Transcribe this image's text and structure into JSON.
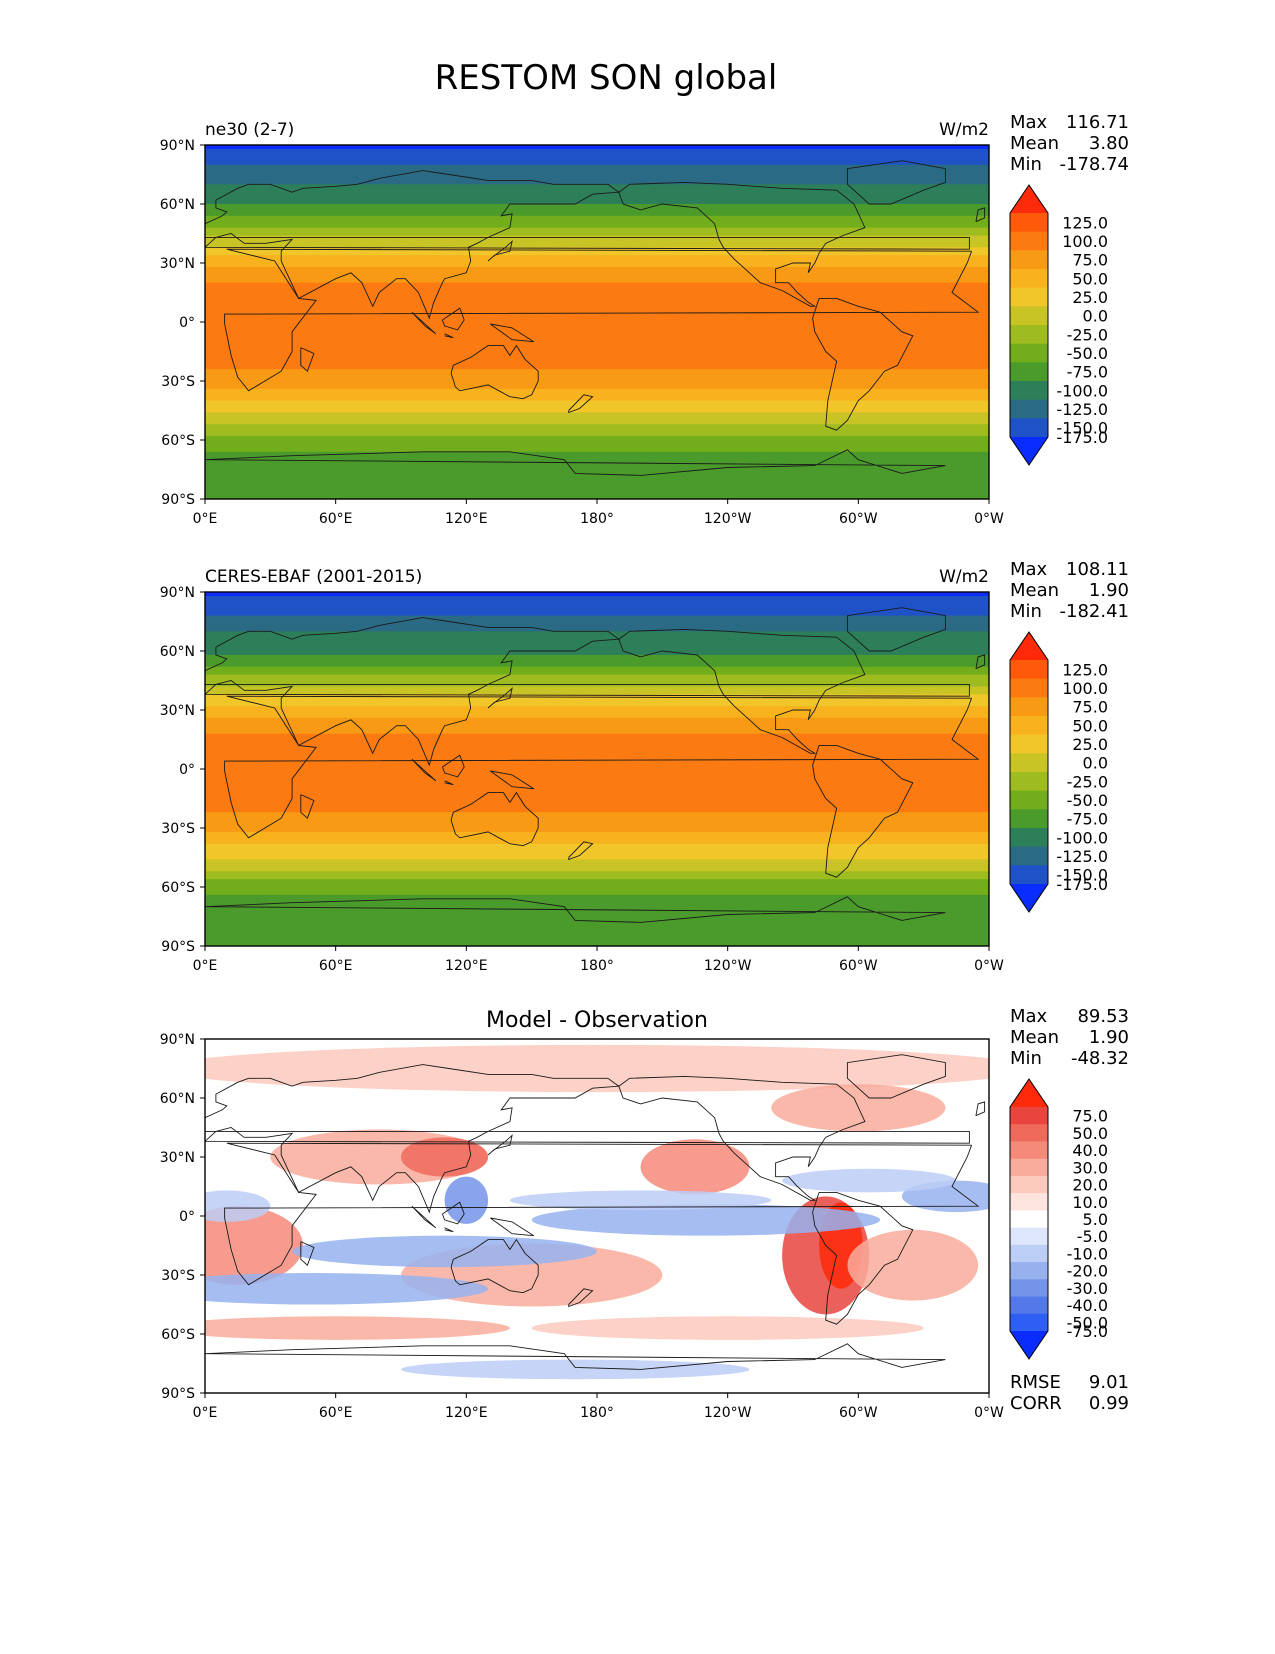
{
  "page_title": "RESTOM SON global",
  "chart_data": [
    {
      "type": "heatmap",
      "left_label": "ne30 (2-7)",
      "units": "W/m2",
      "stats": {
        "Max": "116.71",
        "Mean": "3.80",
        "Min": "-178.74"
      },
      "xticks": [
        "0°E",
        "60°E",
        "120°E",
        "180°",
        "120°W",
        "60°W",
        "0°W"
      ],
      "yticks": [
        "90°N",
        "60°N",
        "30°N",
        "0°",
        "30°S",
        "60°S",
        "90°S"
      ],
      "xlim": [
        0,
        360
      ],
      "ylim": [
        -90,
        90
      ],
      "colorbar": {
        "levels": [
          "125.0",
          "100.0",
          "75.0",
          "50.0",
          "25.0",
          "0.0",
          "-25.0",
          "-50.0",
          "-75.0",
          "-100.0",
          "-125.0",
          "-150.0",
          "-175.0"
        ],
        "colors": [
          "#ff2a0a",
          "#ff5a0a",
          "#fb7a12",
          "#f99a14",
          "#f7b21e",
          "#f0c62a",
          "#c8c426",
          "#9ebc20",
          "#72ae1c",
          "#4a9a2c",
          "#2d7f5a",
          "#2a6a84",
          "#1f52c6",
          "#0b2cff"
        ]
      },
      "zonal_profile": {
        "lat": [
          90,
          80,
          70,
          60,
          50,
          40,
          30,
          20,
          10,
          0,
          -10,
          -20,
          -30,
          -40,
          -50,
          -60,
          -70,
          -80,
          -90
        ],
        "value": [
          -178,
          -150,
          -125,
          -100,
          -60,
          -10,
          40,
          75,
          90,
          85,
          90,
          80,
          65,
          25,
          -15,
          -60,
          -85,
          -80,
          -78
        ]
      }
    },
    {
      "type": "heatmap",
      "left_label": "CERES-EBAF (2001-2015)",
      "units": "W/m2",
      "stats": {
        "Max": "108.11",
        "Mean": "1.90",
        "Min": "-182.41"
      },
      "xticks": [
        "0°E",
        "60°E",
        "120°E",
        "180°",
        "120°W",
        "60°W",
        "0°W"
      ],
      "yticks": [
        "90°N",
        "60°N",
        "30°N",
        "0°",
        "30°S",
        "60°S",
        "90°S"
      ],
      "xlim": [
        0,
        360
      ],
      "ylim": [
        -90,
        90
      ],
      "colorbar": {
        "levels": [
          "125.0",
          "100.0",
          "75.0",
          "50.0",
          "25.0",
          "0.0",
          "-25.0",
          "-50.0",
          "-75.0",
          "-100.0",
          "-125.0",
          "-150.0",
          "-175.0"
        ],
        "colors": [
          "#ff2a0a",
          "#ff5a0a",
          "#fb7a12",
          "#f99a14",
          "#f7b21e",
          "#f0c62a",
          "#c8c426",
          "#9ebc20",
          "#72ae1c",
          "#4a9a2c",
          "#2d7f5a",
          "#2a6a84",
          "#1f52c6",
          "#0b2cff"
        ]
      },
      "zonal_profile": {
        "lat": [
          90,
          80,
          70,
          60,
          50,
          40,
          30,
          20,
          10,
          0,
          -10,
          -20,
          -30,
          -40,
          -50,
          -60,
          -70,
          -80,
          -90
        ],
        "value": [
          -182,
          -155,
          -125,
          -105,
          -65,
          -15,
          35,
          70,
          88,
          85,
          88,
          78,
          60,
          20,
          -20,
          -65,
          -90,
          -85,
          -82
        ]
      }
    },
    {
      "type": "heatmap",
      "title": "Model - Observation",
      "stats": {
        "Max": "89.53",
        "Mean": "1.90",
        "Min": "-48.32"
      },
      "metrics": {
        "RMSE": "9.01",
        "CORR": "0.99"
      },
      "xticks": [
        "0°E",
        "60°E",
        "120°E",
        "180°",
        "120°W",
        "60°W",
        "0°W"
      ],
      "yticks": [
        "90°N",
        "60°N",
        "30°N",
        "0°",
        "30°S",
        "60°S",
        "90°S"
      ],
      "xlim": [
        0,
        360
      ],
      "ylim": [
        -90,
        90
      ],
      "colorbar": {
        "levels": [
          "75.0",
          "50.0",
          "40.0",
          "30.0",
          "20.0",
          "10.0",
          "5.0",
          "-5.0",
          "-10.0",
          "-20.0",
          "-30.0",
          "-40.0",
          "-50.0",
          "-75.0"
        ],
        "colors": [
          "#ff2a0a",
          "#e9443e",
          "#f06a5c",
          "#f58a7a",
          "#f9ab9c",
          "#fcc9bd",
          "#fde4de",
          "#ffffff",
          "#dde6fb",
          "#bccdf6",
          "#97b1ef",
          "#7494ea",
          "#5378e8",
          "#2e5ef2",
          "#0b2cff"
        ]
      }
    }
  ]
}
